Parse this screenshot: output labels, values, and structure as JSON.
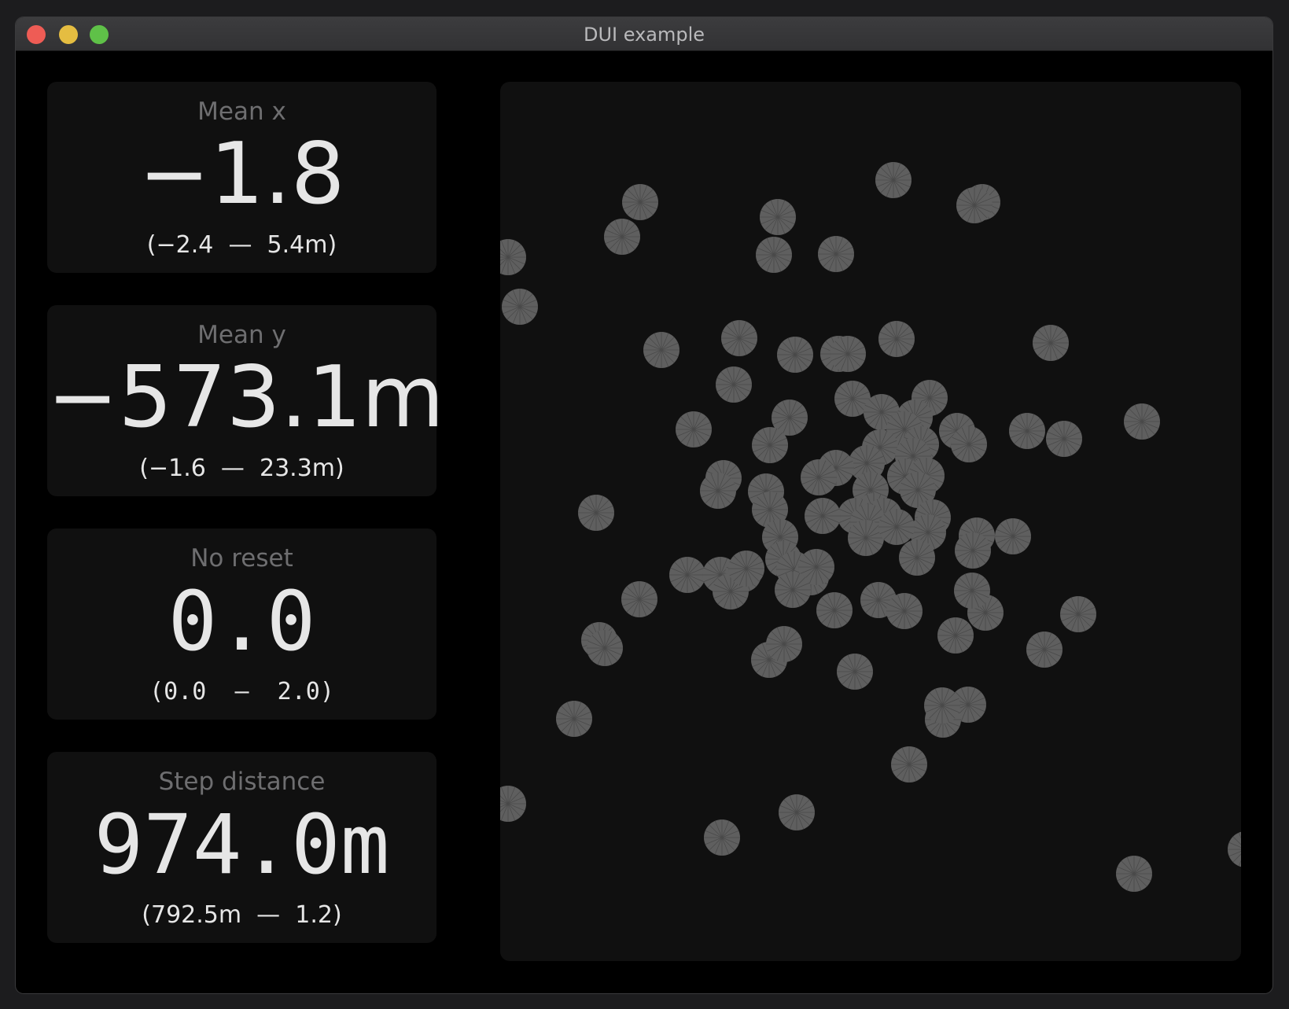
{
  "window": {
    "title": "DUI example"
  },
  "cards": [
    {
      "label": "Mean x",
      "value": "−1.8",
      "range_low": "−2.4",
      "range_high": "5.4m"
    },
    {
      "label": "Mean y",
      "value": "−573.1m",
      "range_low": "−1.6",
      "range_high": "23.3m"
    },
    {
      "label": "No reset",
      "value": "0.0",
      "range_low": "0.0",
      "range_high": "2.0"
    },
    {
      "label": "Step distance",
      "value": "974.0m",
      "range_low": "792.5m",
      "range_high": "1.2"
    }
  ],
  "colors": {
    "particle": "#5f5f5f",
    "particle_spoke": "#4a4a4a",
    "panel": "#101010",
    "background": "#000000"
  },
  "chart_data": {
    "type": "scatter",
    "title": "",
    "xlabel": "",
    "ylabel": "",
    "xlim": [
      0,
      942
    ],
    "ylim": [
      0,
      1118
    ],
    "grid": false,
    "points": [
      [
        500,
        125
      ],
      [
        178,
        153
      ],
      [
        613,
        153
      ],
      [
        155,
        197
      ],
      [
        353,
        172
      ],
      [
        603,
        157
      ],
      [
        348,
        220
      ],
      [
        427,
        219
      ],
      [
        10,
        223
      ],
      [
        25,
        286
      ],
      [
        205,
        341
      ],
      [
        304,
        326
      ],
      [
        375,
        347
      ],
      [
        430,
        346
      ],
      [
        442,
        346
      ],
      [
        504,
        327
      ],
      [
        700,
        332
      ],
      [
        297,
        385
      ],
      [
        448,
        403
      ],
      [
        546,
        402
      ],
      [
        485,
        420
      ],
      [
        527,
        427
      ],
      [
        368,
        427
      ],
      [
        246,
        442
      ],
      [
        343,
        462
      ],
      [
        514,
        442
      ],
      [
        581,
        444
      ],
      [
        670,
        444
      ],
      [
        596,
        461
      ],
      [
        535,
        461
      ],
      [
        717,
        454
      ],
      [
        816,
        432
      ],
      [
        483,
        465
      ],
      [
        525,
        476
      ],
      [
        466,
        485
      ],
      [
        427,
        491
      ],
      [
        405,
        503
      ],
      [
        515,
        502
      ],
      [
        542,
        501
      ],
      [
        531,
        519
      ],
      [
        284,
        504
      ],
      [
        338,
        521
      ],
      [
        277,
        520
      ],
      [
        471,
        519
      ],
      [
        475,
        546
      ],
      [
        452,
        552
      ],
      [
        410,
        552
      ],
      [
        343,
        544
      ],
      [
        122,
        548
      ],
      [
        550,
        554
      ],
      [
        488,
        552
      ],
      [
        468,
        560
      ],
      [
        465,
        580
      ],
      [
        544,
        573
      ],
      [
        504,
        566
      ],
      [
        606,
        577
      ],
      [
        601,
        596
      ],
      [
        530,
        605
      ],
      [
        652,
        578
      ],
      [
        356,
        579
      ],
      [
        360,
        607
      ],
      [
        238,
        627
      ],
      [
        280,
        627
      ],
      [
        309,
        626
      ],
      [
        293,
        648
      ],
      [
        313,
        619
      ],
      [
        374,
        620
      ],
      [
        395,
        630
      ],
      [
        402,
        617
      ],
      [
        372,
        646
      ],
      [
        177,
        658
      ],
      [
        425,
        672
      ],
      [
        481,
        659
      ],
      [
        514,
        673
      ],
      [
        617,
        675
      ],
      [
        600,
        647
      ],
      [
        579,
        704
      ],
      [
        735,
        677
      ],
      [
        126,
        710
      ],
      [
        133,
        720
      ],
      [
        342,
        735
      ],
      [
        361,
        715
      ],
      [
        451,
        750
      ],
      [
        692,
        722
      ],
      [
        595,
        792
      ],
      [
        563,
        811
      ],
      [
        562,
        793
      ],
      [
        520,
        868
      ],
      [
        377,
        929
      ],
      [
        94,
        810
      ],
      [
        10,
        918
      ],
      [
        282,
        961
      ],
      [
        948,
        976
      ],
      [
        806,
        1007
      ]
    ],
    "radius": 23
  }
}
